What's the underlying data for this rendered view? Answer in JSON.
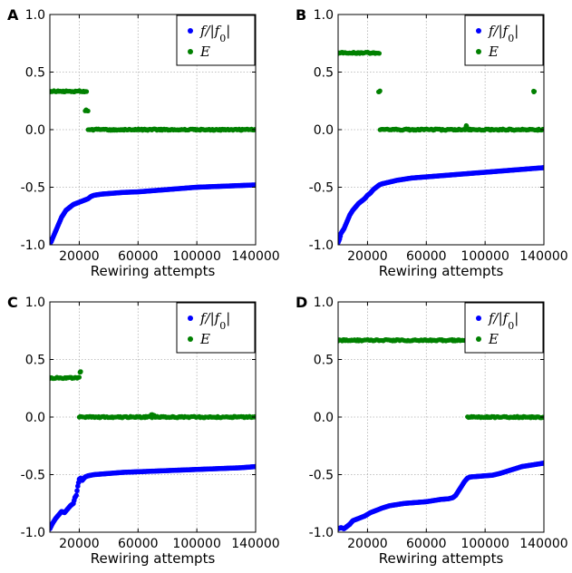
{
  "chart_data": [
    {
      "panel": "A",
      "type": "scatter",
      "xlabel": "Rewiring attempts",
      "ylabel": "",
      "xlim": [
        0,
        140000
      ],
      "ylim": [
        -1.0,
        1.0
      ],
      "xticks": [
        "20000",
        "60000",
        "100000",
        "140000"
      ],
      "yticks": [
        "-1.0",
        "-0.5",
        "0.0",
        "0.5",
        "1.0"
      ],
      "grid": true,
      "legend_position": "top-right",
      "series": [
        {
          "name": "f/|f0|",
          "color": "#0000ff",
          "x": [
            0,
            1000,
            2000,
            3000,
            4000,
            5000,
            6000,
            7000,
            8000,
            9000,
            10000,
            11000,
            12000,
            13000,
            14000,
            15000,
            16000,
            18000,
            20000,
            22000,
            24000,
            26000,
            28000,
            30000,
            35000,
            40000,
            45000,
            50000,
            60000,
            70000,
            80000,
            90000,
            100000,
            110000,
            120000,
            130000,
            140000
          ],
          "y": [
            -0.99,
            -0.97,
            -0.94,
            -0.91,
            -0.88,
            -0.85,
            -0.82,
            -0.79,
            -0.76,
            -0.74,
            -0.72,
            -0.7,
            -0.69,
            -0.68,
            -0.67,
            -0.66,
            -0.65,
            -0.64,
            -0.63,
            -0.62,
            -0.61,
            -0.6,
            -0.58,
            -0.57,
            -0.56,
            -0.555,
            -0.55,
            -0.545,
            -0.54,
            -0.53,
            -0.52,
            -0.51,
            -0.5,
            -0.495,
            -0.49,
            -0.485,
            -0.48
          ]
        },
        {
          "name": "E",
          "color": "#008000",
          "segments": [
            {
              "x_start": 0,
              "x_end": 25000,
              "y": 0.333
            },
            {
              "x_start": 24000,
              "x_end": 26000,
              "y": 0.167
            },
            {
              "x_start": 26000,
              "x_end": 140000,
              "y": 0.0
            }
          ]
        }
      ]
    },
    {
      "panel": "B",
      "type": "scatter",
      "xlabel": "Rewiring attempts",
      "ylabel": "",
      "xlim": [
        0,
        140000
      ],
      "ylim": [
        -1.0,
        1.0
      ],
      "xticks": [
        "20000",
        "60000",
        "100000",
        "140000"
      ],
      "yticks": [
        "-1.0",
        "-0.5",
        "0.0",
        "0.5",
        "1.0"
      ],
      "grid": true,
      "legend_position": "top-right",
      "series": [
        {
          "name": "f/|f0|",
          "color": "#0000ff",
          "x": [
            0,
            1000,
            2000,
            3000,
            4000,
            6000,
            8000,
            10000,
            12000,
            14000,
            16000,
            18000,
            20000,
            22000,
            24000,
            26000,
            28000,
            30000,
            40000,
            50000,
            60000,
            70000,
            80000,
            90000,
            100000,
            110000,
            120000,
            130000,
            140000
          ],
          "y": [
            -0.98,
            -0.95,
            -0.9,
            -0.88,
            -0.86,
            -0.8,
            -0.74,
            -0.7,
            -0.67,
            -0.64,
            -0.62,
            -0.6,
            -0.57,
            -0.55,
            -0.52,
            -0.5,
            -0.48,
            -0.47,
            -0.44,
            -0.42,
            -0.41,
            -0.4,
            -0.39,
            -0.38,
            -0.37,
            -0.36,
            -0.35,
            -0.34,
            -0.33
          ]
        },
        {
          "name": "E",
          "color": "#008000",
          "segments": [
            {
              "x_start": 0,
              "x_end": 28000,
              "y": 0.667
            },
            {
              "x_start": 27500,
              "x_end": 28500,
              "y": 0.333
            },
            {
              "x_start": 28500,
              "x_end": 140000,
              "y": 0.0
            },
            {
              "x_start": 87000,
              "x_end": 87500,
              "y": 0.03
            },
            {
              "x_start": 133000,
              "x_end": 133500,
              "y": 0.333
            }
          ]
        }
      ]
    },
    {
      "panel": "C",
      "type": "scatter",
      "xlabel": "Rewiring attempts",
      "ylabel": "",
      "xlim": [
        0,
        140000
      ],
      "ylim": [
        -1.0,
        1.0
      ],
      "xticks": [
        "20000",
        "60000",
        "100000",
        "140000"
      ],
      "yticks": [
        "-1.0",
        "-0.5",
        "0.0",
        "0.5",
        "1.0"
      ],
      "grid": true,
      "legend_position": "top-right",
      "series": [
        {
          "name": "f/|f0|",
          "color": "#0000ff",
          "x": [
            0,
            2000,
            4000,
            6000,
            8000,
            10000,
            12000,
            14000,
            16000,
            17000,
            18000,
            19000,
            20000,
            21000,
            22000,
            24000,
            26000,
            30000,
            40000,
            50000,
            60000,
            70000,
            80000,
            90000,
            100000,
            110000,
            120000,
            130000,
            140000
          ],
          "y": [
            -0.97,
            -0.92,
            -0.88,
            -0.85,
            -0.82,
            -0.83,
            -0.8,
            -0.77,
            -0.75,
            -0.7,
            -0.68,
            -0.6,
            -0.54,
            -0.53,
            -0.55,
            -0.52,
            -0.51,
            -0.5,
            -0.49,
            -0.48,
            -0.475,
            -0.47,
            -0.465,
            -0.46,
            -0.455,
            -0.45,
            -0.445,
            -0.44,
            -0.43
          ]
        },
        {
          "name": "E",
          "color": "#008000",
          "segments": [
            {
              "x_start": 0,
              "x_end": 20000,
              "y": 0.34
            },
            {
              "x_start": 20500,
              "x_end": 21000,
              "y": 0.39
            },
            {
              "x_start": 20000,
              "x_end": 140000,
              "y": 0.0
            },
            {
              "x_start": 69000,
              "x_end": 71000,
              "y": 0.02
            }
          ]
        }
      ]
    },
    {
      "panel": "D",
      "type": "scatter",
      "xlabel": "Rewiring attempts",
      "ylabel": "",
      "xlim": [
        0,
        140000
      ],
      "ylim": [
        -1.0,
        1.0
      ],
      "xticks": [
        "20000",
        "60000",
        "100000",
        "140000"
      ],
      "yticks": [
        "-1.0",
        "-0.5",
        "0.0",
        "0.5",
        "1.0"
      ],
      "grid": true,
      "legend_position": "top-right",
      "series": [
        {
          "name": "f/|f0|",
          "color": "#0000ff",
          "x": [
            0,
            2000,
            4000,
            6000,
            8000,
            10000,
            14000,
            18000,
            22000,
            26000,
            30000,
            35000,
            40000,
            45000,
            50000,
            55000,
            60000,
            65000,
            70000,
            75000,
            78000,
            80000,
            82000,
            84000,
            86000,
            88000,
            90000,
            95000,
            100000,
            105000,
            110000,
            115000,
            120000,
            125000,
            130000,
            135000,
            140000
          ],
          "y": [
            -0.97,
            -0.96,
            -0.97,
            -0.95,
            -0.93,
            -0.9,
            -0.88,
            -0.86,
            -0.83,
            -0.81,
            -0.79,
            -0.77,
            -0.76,
            -0.75,
            -0.745,
            -0.74,
            -0.735,
            -0.725,
            -0.715,
            -0.71,
            -0.7,
            -0.68,
            -0.64,
            -0.6,
            -0.56,
            -0.53,
            -0.52,
            -0.515,
            -0.51,
            -0.505,
            -0.49,
            -0.47,
            -0.45,
            -0.43,
            -0.42,
            -0.41,
            -0.4
          ]
        },
        {
          "name": "E",
          "color": "#008000",
          "segments": [
            {
              "x_start": 0,
              "x_end": 88000,
              "y": 0.667
            },
            {
              "x_start": 88000,
              "x_end": 140000,
              "y": 0.0
            }
          ]
        }
      ]
    }
  ]
}
